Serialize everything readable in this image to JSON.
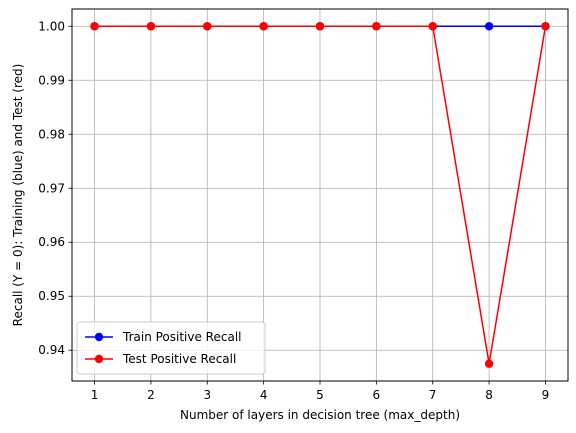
{
  "chart_data": {
    "type": "line",
    "xlabel": "Number of layers in decision tree (max_depth)",
    "ylabel": "Recall (Y = 0): Training (blue) and Test (red)",
    "x": [
      1,
      2,
      3,
      4,
      5,
      6,
      7,
      8,
      9
    ],
    "xlim": [
      0.6,
      9.4
    ],
    "ylim": [
      0.9343,
      1.0032
    ],
    "x_ticks": [
      "1",
      "2",
      "3",
      "4",
      "5",
      "6",
      "7",
      "8",
      "9"
    ],
    "y_ticks": [
      "0.94",
      "0.95",
      "0.96",
      "0.97",
      "0.98",
      "0.99",
      "1.00"
    ],
    "grid": true,
    "legend_position": "lower left",
    "series": [
      {
        "name": "Train Positive Recall",
        "color": "#0000ff",
        "marker": "circle",
        "values": [
          1.0,
          1.0,
          1.0,
          1.0,
          1.0,
          1.0,
          1.0,
          1.0,
          1.0
        ]
      },
      {
        "name": "Test Positive Recall",
        "color": "#ff0000",
        "marker": "circle",
        "values": [
          1.0,
          1.0,
          1.0,
          1.0,
          1.0,
          1.0,
          1.0,
          0.9375,
          1.0
        ]
      }
    ]
  }
}
